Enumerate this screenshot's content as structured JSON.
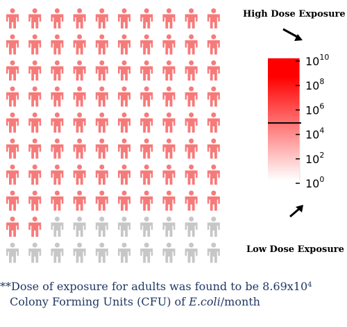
{
  "chart_data": {
    "type": "icon-array",
    "grid": {
      "rows": 10,
      "cols": 10
    },
    "total": 100,
    "highlighted_count": 82,
    "colors": {
      "highlighted": "#f77a7a",
      "not_highlighted": "#c7c7c7",
      "scale_high": "#ff0000",
      "scale_low": "#ffffff",
      "marker": "#000000"
    },
    "scale": {
      "type": "log",
      "base": 10,
      "ticks": [
        {
          "base": "10",
          "exp": "10",
          "value": 10000000000
        },
        {
          "base": "10",
          "exp": "8",
          "value": 100000000
        },
        {
          "base": "10",
          "exp": "6",
          "value": 1000000
        },
        {
          "base": "10",
          "exp": "4",
          "value": 10000
        },
        {
          "base": "10",
          "exp": "2",
          "value": 100
        },
        {
          "base": "10",
          "exp": "0",
          "value": 1
        }
      ],
      "marker_value": 86900,
      "high_label": "High Dose Exposure",
      "low_label": "Low Dose Exposure"
    }
  },
  "footnote": {
    "prefix": "**Dose of exposure for adults was found to be 8.69x10",
    "exponent": "4",
    "line2_start": "Colony Forming Units (CFU) of ",
    "organism": "E.coli",
    "line2_end": "/month"
  }
}
